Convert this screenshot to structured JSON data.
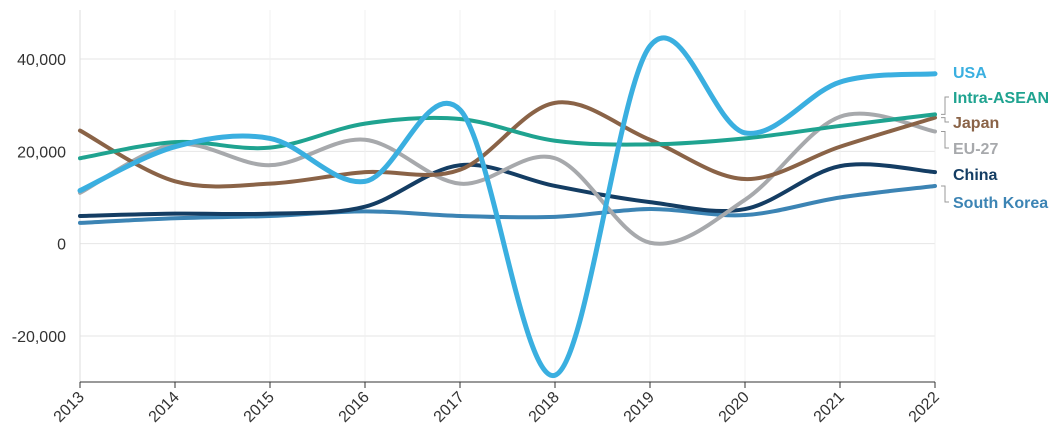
{
  "chart_data": {
    "type": "line",
    "title": "",
    "xlabel": "",
    "ylabel": "",
    "x": [
      "2013",
      "2014",
      "2015",
      "2016",
      "2017",
      "2018",
      "2019",
      "2020",
      "2021",
      "2022"
    ],
    "ylim": [
      -30000,
      50000
    ],
    "yticks": [
      {
        "value": 40000,
        "label": "40,000"
      },
      {
        "value": 20000,
        "label": "20,000"
      },
      {
        "value": 0,
        "label": "0"
      },
      {
        "value": -20000,
        "label": "-20,000"
      }
    ],
    "grid": true,
    "legend_position": "right",
    "series": [
      {
        "name": "USA",
        "color": "#3aafe0",
        "values": [
          11500,
          21000,
          22800,
          13500,
          29000,
          -28500,
          42800,
          24000,
          35000,
          36800
        ]
      },
      {
        "name": "Intra-ASEAN",
        "color": "#1fa390",
        "values": [
          18500,
          22000,
          20800,
          26000,
          27000,
          22300,
          21500,
          22800,
          25500,
          28000
        ]
      },
      {
        "name": "Japan",
        "color": "#8a6347",
        "values": [
          24500,
          13500,
          13000,
          15500,
          16000,
          30500,
          22500,
          14000,
          21000,
          27300
        ]
      },
      {
        "name": "EU-27",
        "color": "#a7a9ac",
        "values": [
          11000,
          21500,
          17000,
          22500,
          13000,
          18500,
          200,
          9500,
          27500,
          24300
        ]
      },
      {
        "name": "China",
        "color": "#143d63",
        "values": [
          6000,
          6500,
          6500,
          8000,
          17000,
          12500,
          9000,
          7500,
          16800,
          15500
        ]
      },
      {
        "name": "South Korea",
        "color": "#3c84b4",
        "values": [
          4500,
          5500,
          6000,
          7000,
          6000,
          5800,
          7500,
          6200,
          10000,
          12500
        ]
      }
    ]
  }
}
